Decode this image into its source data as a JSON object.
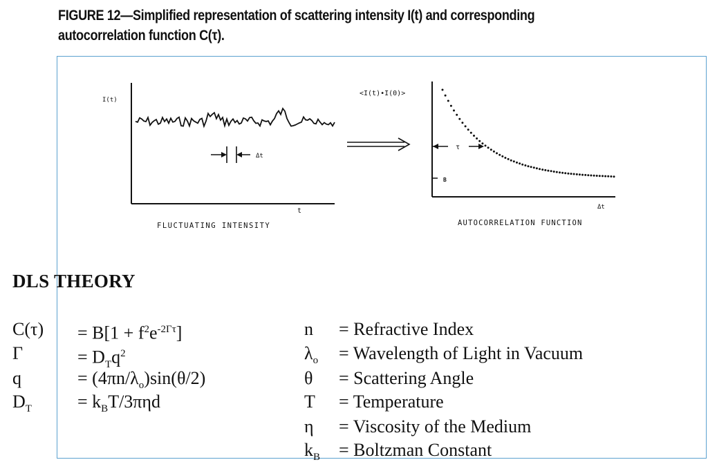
{
  "caption": {
    "line1": "FIGURE 12—Simplified representation of scattering intensity I(t) and corresponding",
    "line2": "autocorrelation function C(τ)."
  },
  "left_graph": {
    "y_label": "I(t)",
    "delta_label": "Δt",
    "x_label": "t",
    "title": "FLUCTUATING INTENSITY"
  },
  "right_graph": {
    "y_label": "<I(t)•I(0)>",
    "tau_label": "τ",
    "b_label": "B",
    "x_label": "Δt",
    "title": "AUTOCORRELATION FUNCTION"
  },
  "theory": {
    "heading": "DLS THEORY",
    "left_equations": [
      {
        "symbol": "C(τ)",
        "rhs": "= B[1 + f²e⁻²ᴳτ]"
      },
      {
        "symbol": "Γ",
        "rhs": "= D_T q²"
      },
      {
        "symbol": "q",
        "rhs": "= (4πn/λ₀)sin(θ/2)"
      },
      {
        "symbol": "D_T",
        "rhs": "= k_B T/3πηd"
      }
    ],
    "definitions": [
      {
        "symbol": "n",
        "meaning": "= Refractive Index"
      },
      {
        "symbol": "λ₀",
        "meaning": "= Wavelength of Light in Vacuum"
      },
      {
        "symbol": "θ",
        "meaning": "= Scattering Angle"
      },
      {
        "symbol": "T",
        "meaning": "= Temperature"
      },
      {
        "symbol": "η",
        "meaning": "= Viscosity of the Medium"
      },
      {
        "symbol": "k_B",
        "meaning": "= Boltzman Constant"
      }
    ]
  }
}
